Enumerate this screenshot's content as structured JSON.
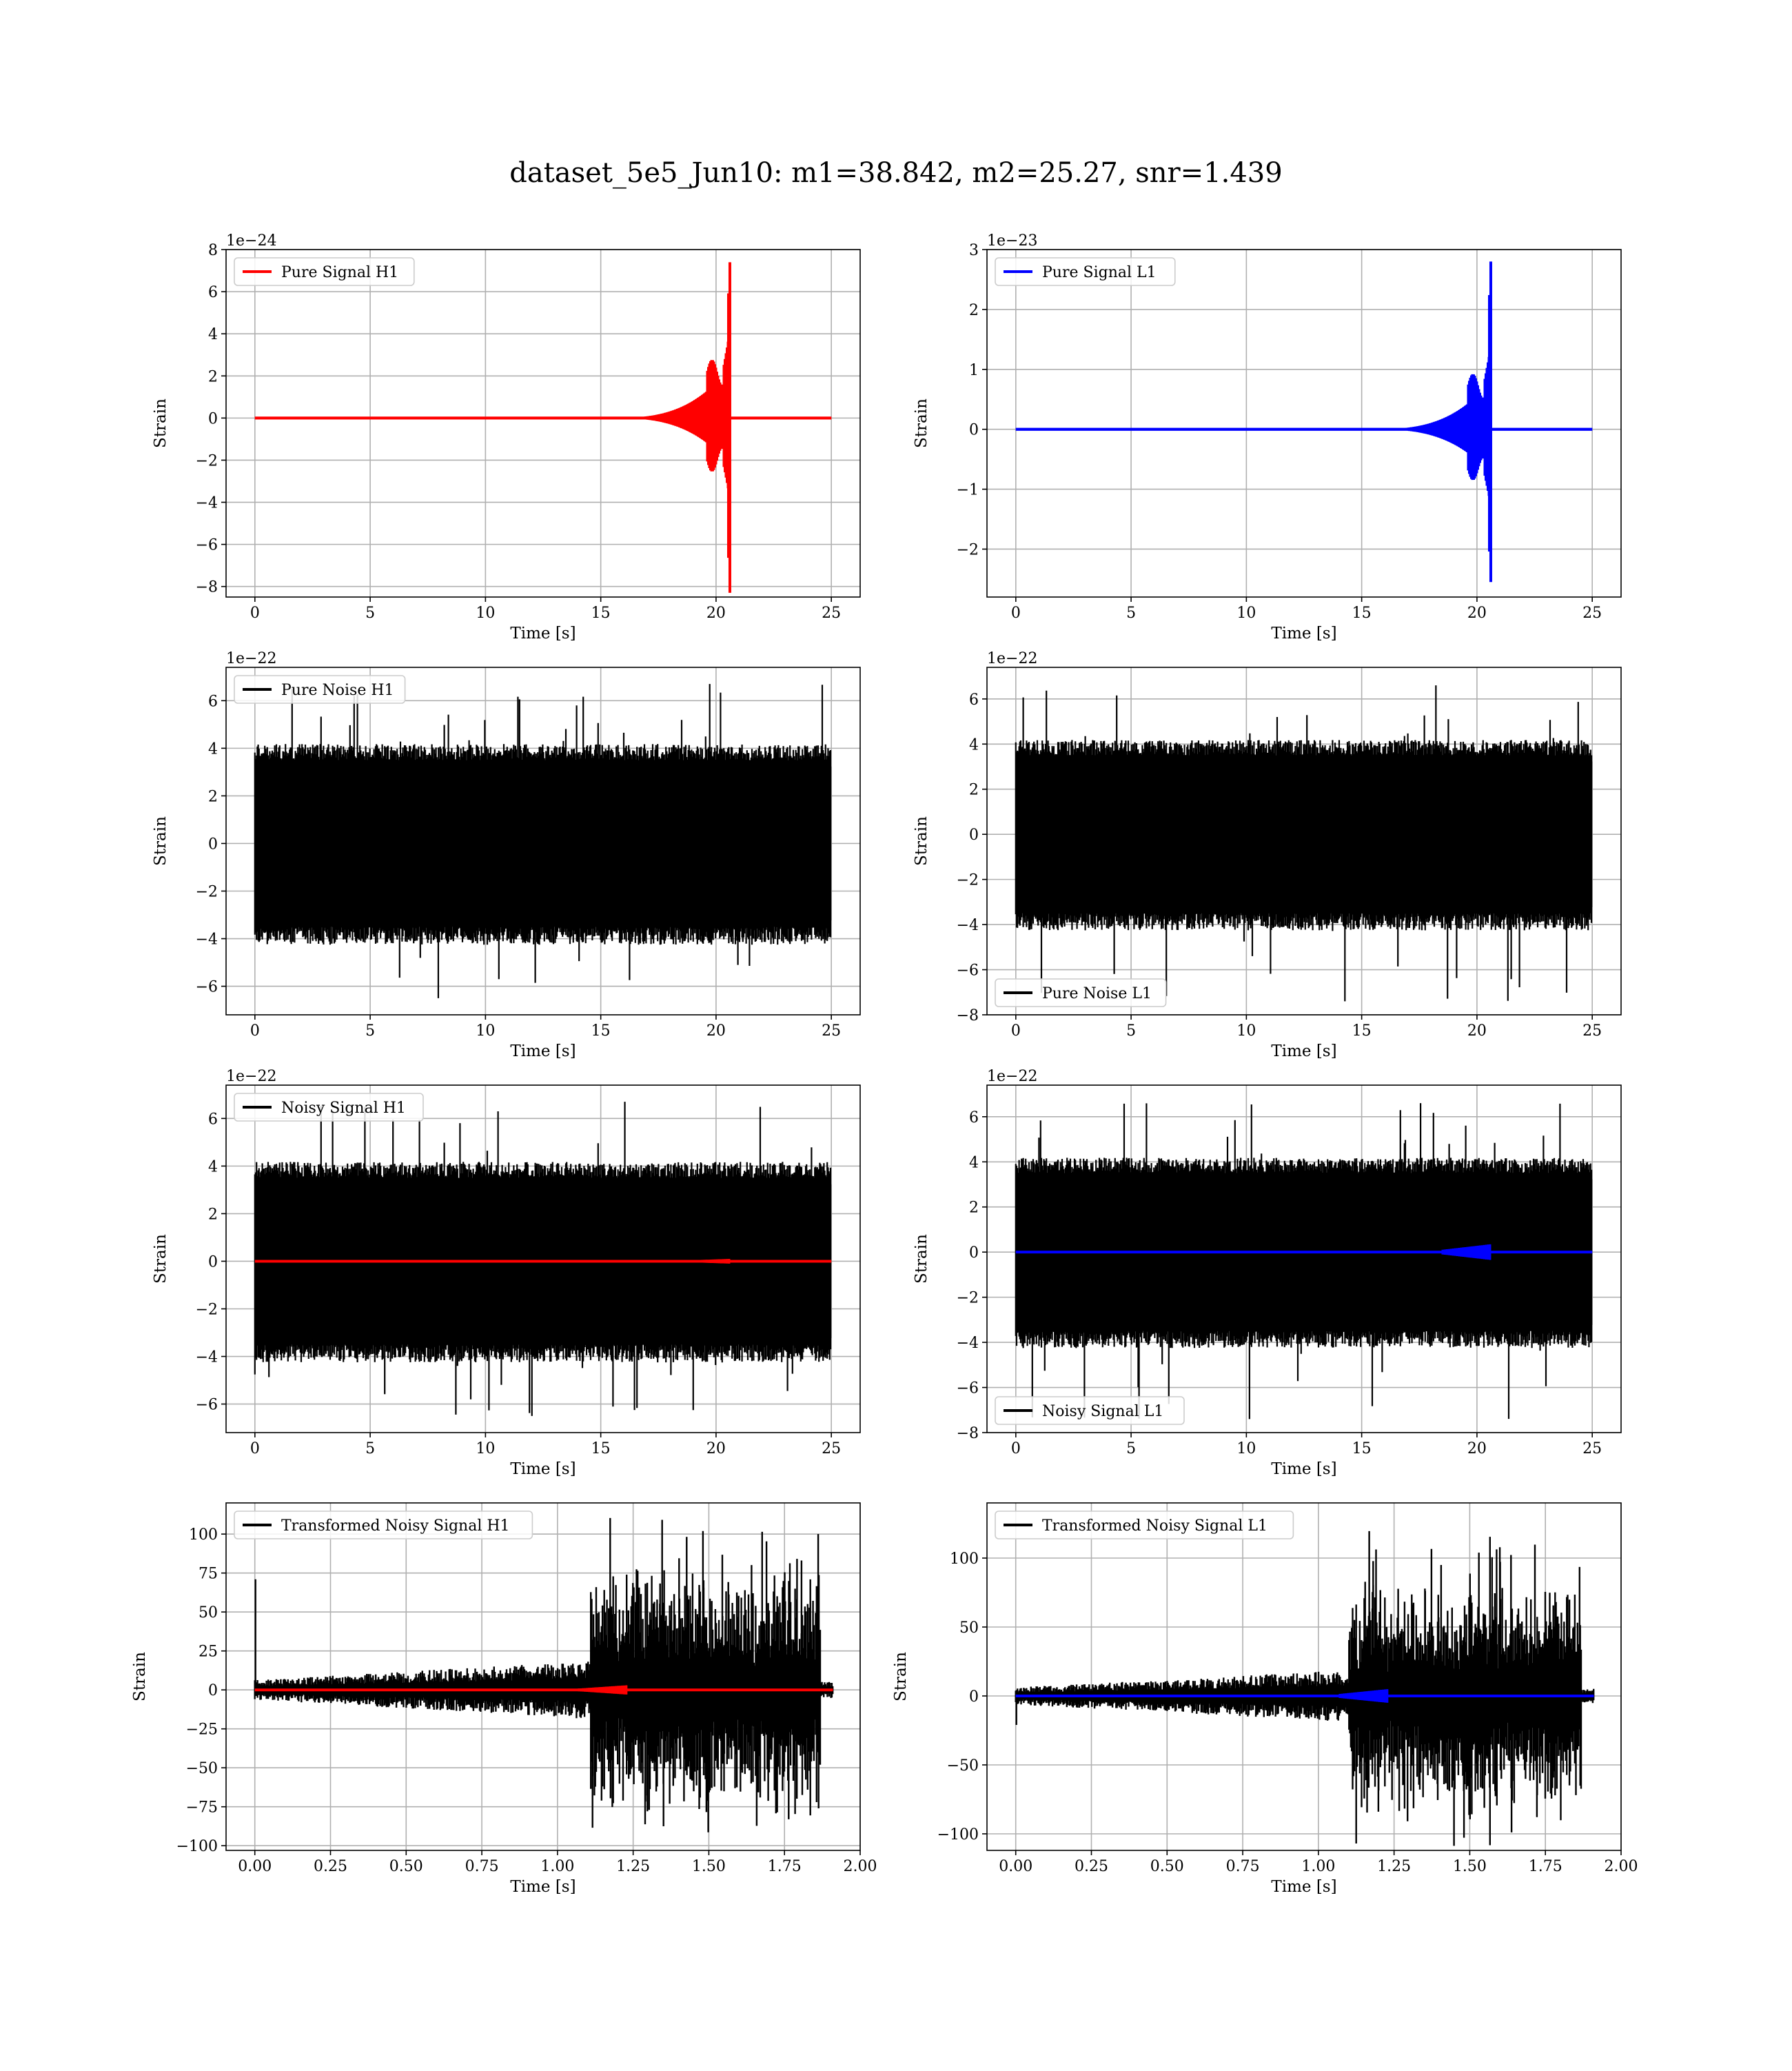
{
  "figure": {
    "title": "dataset_5e5_Jun10: m1=38.842, m2=25.27, snr=1.439"
  },
  "chart_data": [
    {
      "type": "line",
      "xlabel": "Time [s]",
      "ylabel": "Strain",
      "offset_text": "1e−24",
      "xlim": [
        -1.25,
        26.25
      ],
      "ylim": [
        -8.5,
        8.0
      ],
      "xticks": [
        0,
        5,
        10,
        15,
        20,
        25
      ],
      "yticks": [
        -8,
        -6,
        -4,
        -2,
        0,
        2,
        4,
        6,
        8
      ],
      "ytick_labels": [
        "−8",
        "−6",
        "−4",
        "−2",
        "0",
        "2",
        "4",
        "6",
        "8"
      ],
      "legend": "top-left",
      "grid": true,
      "series": [
        {
          "name": "Pure Signal H1",
          "color": "#ff0000",
          "kind": "chirp",
          "x_start": 0,
          "x_end": 25,
          "merger_x": 20.6,
          "peak_high": 7.4,
          "peak_low": -8.3,
          "plateau": 2.4
        }
      ]
    },
    {
      "type": "line",
      "xlabel": "Time [s]",
      "ylabel": "Strain",
      "offset_text": "1e−23",
      "xlim": [
        -1.25,
        26.25
      ],
      "ylim": [
        -2.8,
        3.0
      ],
      "xticks": [
        0,
        5,
        10,
        15,
        20,
        25
      ],
      "yticks": [
        -2,
        -1,
        0,
        1,
        2,
        3
      ],
      "ytick_labels": [
        "−2",
        "−1",
        "0",
        "1",
        "2",
        "3"
      ],
      "legend": "top-left",
      "grid": true,
      "series": [
        {
          "name": "Pure Signal L1",
          "color": "#0000ff",
          "kind": "chirp",
          "x_start": 0,
          "x_end": 25,
          "merger_x": 20.6,
          "peak_high": 2.8,
          "peak_low": -2.55,
          "plateau": 0.8
        }
      ]
    },
    {
      "type": "line",
      "xlabel": "Time [s]",
      "ylabel": "Strain",
      "offset_text": "1e−22",
      "xlim": [
        -1.25,
        26.25
      ],
      "ylim": [
        -7.2,
        7.4
      ],
      "xticks": [
        0,
        5,
        10,
        15,
        20,
        25
      ],
      "yticks": [
        -6,
        -4,
        -2,
        0,
        2,
        4,
        6
      ],
      "ytick_labels": [
        "−6",
        "−4",
        "−2",
        "0",
        "2",
        "4",
        "6"
      ],
      "legend": "top-left",
      "grid": true,
      "series": [
        {
          "name": "Pure Noise H1",
          "color": "#000000",
          "kind": "noise",
          "x_start": 0,
          "x_end": 25,
          "max": 6.7,
          "min": -6.5,
          "typical": 3.8
        }
      ]
    },
    {
      "type": "line",
      "xlabel": "Time [s]",
      "ylabel": "Strain",
      "offset_text": "1e−22",
      "xlim": [
        -1.25,
        26.25
      ],
      "ylim": [
        -8.0,
        7.4
      ],
      "xticks": [
        0,
        5,
        10,
        15,
        20,
        25
      ],
      "yticks": [
        -8,
        -6,
        -4,
        -2,
        0,
        2,
        4,
        6
      ],
      "ytick_labels": [
        "−8",
        "−6",
        "−4",
        "−2",
        "0",
        "2",
        "4",
        "6"
      ],
      "legend": "bottom-left",
      "grid": true,
      "series": [
        {
          "name": "Pure Noise L1",
          "color": "#000000",
          "kind": "noise",
          "x_start": 0,
          "x_end": 25,
          "max": 6.6,
          "min": -7.4,
          "typical": 3.8
        }
      ]
    },
    {
      "type": "line",
      "xlabel": "Time [s]",
      "ylabel": "Strain",
      "offset_text": "1e−22",
      "xlim": [
        -1.25,
        26.25
      ],
      "ylim": [
        -7.2,
        7.4
      ],
      "xticks": [
        0,
        5,
        10,
        15,
        20,
        25
      ],
      "yticks": [
        -6,
        -4,
        -2,
        0,
        2,
        4,
        6
      ],
      "ytick_labels": [
        "−6",
        "−4",
        "−2",
        "0",
        "2",
        "4",
        "6"
      ],
      "legend": "top-left",
      "grid": true,
      "series": [
        {
          "name": "Noisy Signal H1",
          "color": "#000000",
          "kind": "noise",
          "x_start": 0,
          "x_end": 25,
          "max": 6.7,
          "min": -6.5,
          "typical": 3.8
        },
        {
          "color": "#ff0000",
          "kind": "flat",
          "x_start": 0,
          "x_end": 25,
          "value": 0,
          "bump_x": 20.6,
          "bump": 0.1
        }
      ]
    },
    {
      "type": "line",
      "xlabel": "Time [s]",
      "ylabel": "Strain",
      "offset_text": "1e−22",
      "xlim": [
        -1.25,
        26.25
      ],
      "ylim": [
        -8.0,
        7.4
      ],
      "xticks": [
        0,
        5,
        10,
        15,
        20,
        25
      ],
      "yticks": [
        -8,
        -6,
        -4,
        -2,
        0,
        2,
        4,
        6
      ],
      "ytick_labels": [
        "−8",
        "−6",
        "−4",
        "−2",
        "0",
        "2",
        "4",
        "6"
      ],
      "legend": "bottom-left",
      "grid": true,
      "series": [
        {
          "name": "Noisy Signal L1",
          "color": "#000000",
          "kind": "noise",
          "x_start": 0,
          "x_end": 25,
          "max": 6.6,
          "min": -7.4,
          "typical": 3.8
        },
        {
          "color": "#0000ff",
          "kind": "flat",
          "x_start": 0,
          "x_end": 25,
          "value": 0,
          "bump_x": 20.6,
          "bump": 0.35
        }
      ]
    },
    {
      "type": "line",
      "xlabel": "Time [s]",
      "ylabel": "Strain",
      "offset_text": "",
      "xlim": [
        -0.095,
        2.0
      ],
      "ylim": [
        -103,
        120
      ],
      "xticks": [
        0.0,
        0.25,
        0.5,
        0.75,
        1.0,
        1.25,
        1.5,
        1.75,
        2.0
      ],
      "xtick_labels": [
        "0.00",
        "0.25",
        "0.50",
        "0.75",
        "1.00",
        "1.25",
        "1.50",
        "1.75",
        "2.00"
      ],
      "yticks": [
        -100,
        -75,
        -50,
        -25,
        0,
        25,
        50,
        75,
        100
      ],
      "ytick_labels": [
        "−100",
        "−75",
        "−50",
        "−25",
        "0",
        "25",
        "50",
        "75",
        "100"
      ],
      "legend": "top-left",
      "grid": true,
      "series": [
        {
          "name": "Transformed Noisy Signal H1",
          "color": "#000000",
          "kind": "whitened",
          "x_start": 0,
          "x_end": 1.91,
          "spike_x": 0,
          "spike": 71,
          "burst_start": 1.11,
          "burst_end": 1.87,
          "low_amp": 8,
          "burst_amp": 55,
          "max": 112,
          "min": -92
        },
        {
          "color": "#ff0000",
          "kind": "flat",
          "x_start": 0,
          "x_end": 1.91,
          "value": 0,
          "bump_x": 1.23,
          "bump": 3
        }
      ]
    },
    {
      "type": "line",
      "xlabel": "Time [s]",
      "ylabel": "Strain",
      "offset_text": "",
      "xlim": [
        -0.095,
        2.0
      ],
      "ylim": [
        -112,
        140
      ],
      "xticks": [
        0.0,
        0.25,
        0.5,
        0.75,
        1.0,
        1.25,
        1.5,
        1.75,
        2.0
      ],
      "xtick_labels": [
        "0.00",
        "0.25",
        "0.50",
        "0.75",
        "1.00",
        "1.25",
        "1.50",
        "1.75",
        "2.00"
      ],
      "yticks": [
        -100,
        -50,
        0,
        50,
        100
      ],
      "ytick_labels": [
        "−100",
        "−50",
        "0",
        "50",
        "100"
      ],
      "legend": "top-left",
      "grid": true,
      "series": [
        {
          "name": "Transformed Noisy Signal L1",
          "color": "#000000",
          "kind": "whitened",
          "x_start": 0,
          "x_end": 1.91,
          "spike_x": 0,
          "spike": -21,
          "burst_start": 1.1,
          "burst_end": 1.87,
          "low_amp": 8,
          "burst_amp": 60,
          "max": 127,
          "min": -110
        },
        {
          "color": "#0000ff",
          "kind": "flat",
          "x_start": 0,
          "x_end": 1.91,
          "value": 0,
          "bump_x": 1.23,
          "bump": 5
        }
      ]
    }
  ]
}
